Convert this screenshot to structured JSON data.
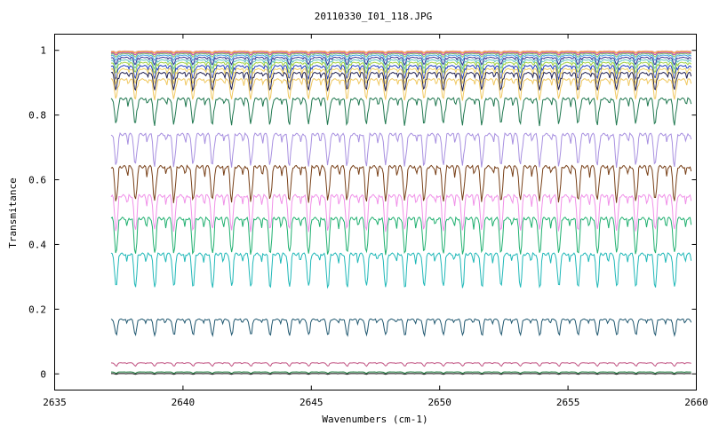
{
  "chart_data": {
    "type": "line",
    "title": "20110330_I01_118.JPG",
    "xlabel": "Wavenumbers (cm-1)",
    "ylabel": "Transmitance",
    "xlim": [
      2635,
      2660
    ],
    "ylim": [
      -0.05,
      1.05
    ],
    "x_ticks": [
      2635,
      2640,
      2645,
      2650,
      2655,
      2660
    ],
    "y_ticks": [
      0,
      0.2,
      0.4,
      0.6,
      0.8,
      1
    ],
    "x_tick_labels": [
      "2635",
      "2640",
      "2645",
      "2650",
      "2655",
      "2660"
    ],
    "y_tick_labels": [
      "0",
      "0.2",
      "0.4",
      "0.6",
      "0.8",
      "1"
    ],
    "grid": false,
    "legend": "none",
    "x_range_data": [
      2637.2,
      2659.8
    ],
    "line_period_cm1": 0.75,
    "series": [
      {
        "color": "#e8a0a0",
        "baseline": 0.998,
        "amplitude": 0.004
      },
      {
        "color": "#f0a020",
        "baseline": 0.996,
        "amplitude": 0.006
      },
      {
        "color": "#c040c0",
        "baseline": 0.993,
        "amplitude": 0.008
      },
      {
        "color": "#80c060",
        "baseline": 0.99,
        "amplitude": 0.012
      },
      {
        "color": "#40a0e0",
        "baseline": 0.985,
        "amplitude": 0.018
      },
      {
        "color": "#303090",
        "baseline": 0.978,
        "amplitude": 0.025
      },
      {
        "color": "#60c0c0",
        "baseline": 0.97,
        "amplitude": 0.03
      },
      {
        "color": "#a0d040",
        "baseline": 0.962,
        "amplitude": 0.036
      },
      {
        "color": "#2040c0",
        "baseline": 0.952,
        "amplitude": 0.045
      },
      {
        "color": "#f0d060",
        "baseline": 0.942,
        "amplitude": 0.05
      },
      {
        "color": "#202050",
        "baseline": 0.93,
        "amplitude": 0.06
      },
      {
        "color": "#f0c860",
        "baseline": 0.91,
        "amplitude": 0.07
      },
      {
        "color": "#207850",
        "baseline": 0.85,
        "amplitude": 0.09
      },
      {
        "color": "#a890e0",
        "baseline": 0.74,
        "amplitude": 0.11
      },
      {
        "color": "#784018",
        "baseline": 0.64,
        "amplitude": 0.12
      },
      {
        "color": "#f090e8",
        "baseline": 0.55,
        "amplitude": 0.12
      },
      {
        "color": "#20b070",
        "baseline": 0.48,
        "amplitude": 0.12
      },
      {
        "color": "#20b8b8",
        "baseline": 0.37,
        "amplitude": 0.11
      },
      {
        "color": "#205870",
        "baseline": 0.168,
        "amplitude": 0.05
      },
      {
        "color": "#c05080",
        "baseline": 0.034,
        "amplitude": 0.01
      },
      {
        "color": "#208040",
        "baseline": 0.006,
        "amplitude": 0.004
      },
      {
        "color": "#000000",
        "baseline": 0.001,
        "amplitude": 0.002
      }
    ]
  }
}
